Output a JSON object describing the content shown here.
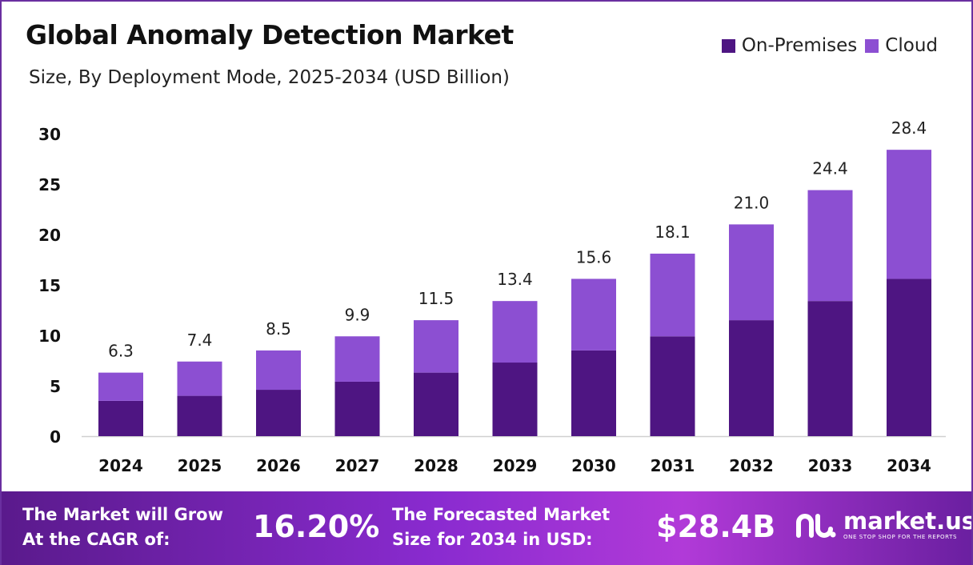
{
  "header": {
    "title": "Global Anomaly Detection Market",
    "subtitle": "Size, By Deployment Mode, 2025-2034 (USD Billion)"
  },
  "legend": [
    {
      "label": "On-Premises",
      "color": "#4e1582"
    },
    {
      "label": "Cloud",
      "color": "#8c4fd2"
    }
  ],
  "chart_data": {
    "type": "bar",
    "stacked": true,
    "categories": [
      "2024",
      "2025",
      "2026",
      "2027",
      "2028",
      "2029",
      "2030",
      "2031",
      "2032",
      "2033",
      "2034"
    ],
    "series": [
      {
        "name": "On-Premises",
        "color": "#4e1582",
        "values": [
          3.5,
          4.0,
          4.6,
          5.4,
          6.3,
          7.3,
          8.5,
          9.9,
          11.5,
          13.4,
          15.6
        ]
      },
      {
        "name": "Cloud",
        "color": "#8c4fd2",
        "values": [
          2.8,
          3.4,
          3.9,
          4.5,
          5.2,
          6.1,
          7.1,
          8.2,
          9.5,
          11.0,
          12.8
        ]
      }
    ],
    "totals": [
      "6.3",
      "7.4",
      "8.5",
      "9.9",
      "11.5",
      "13.4",
      "15.6",
      "18.1",
      "21.0",
      "24.4",
      "28.4"
    ],
    "yticks": [
      "0",
      "5",
      "10",
      "15",
      "20",
      "25",
      "30"
    ],
    "ylim": [
      0,
      30
    ],
    "grid": false,
    "legend_position": "top-right"
  },
  "footer": {
    "cagr_label_line1": "The Market will Grow",
    "cagr_label_line2": "At the CAGR of:",
    "cagr_value": "16.20%",
    "forecast_label_line1": "The Forecasted Market",
    "forecast_label_line2": "Size for 2034 in USD:",
    "forecast_value": "$28.4B",
    "logo_name": "market.us",
    "logo_tagline": "ONE STOP SHOP FOR THE REPORTS"
  }
}
